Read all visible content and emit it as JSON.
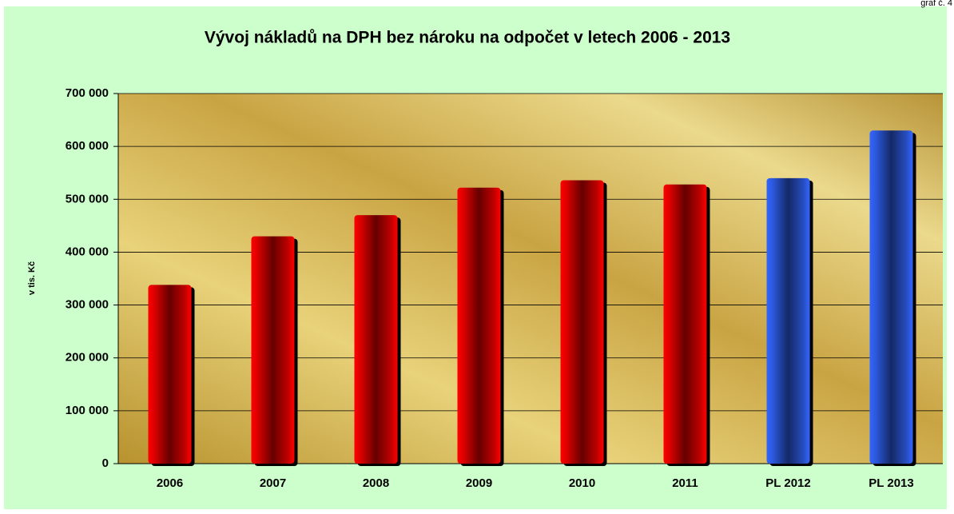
{
  "chart_data": {
    "type": "bar",
    "title": "Vývoj nákladů na DPH bez nároku na odpočet v letech 2006 - 2013",
    "corner_note": "graf č. 4",
    "y_label": "v tis. Kč",
    "categories": [
      "2006",
      "2007",
      "2008",
      "2009",
      "2010",
      "2011",
      "PL 2012",
      "PL 2013"
    ],
    "values": [
      338000,
      430000,
      470000,
      522000,
      536000,
      528000,
      540000,
      630000
    ],
    "colors": [
      "#ff0000",
      "#ff0000",
      "#ff0000",
      "#ff0000",
      "#ff0000",
      "#ff0000",
      "#3366ff",
      "#3366ff"
    ],
    "ylim": [
      0,
      700000
    ],
    "yticks": [
      0,
      {
        "value": 100000,
        "label": "100 000"
      },
      {
        "value": 200000,
        "label": "200 000"
      },
      {
        "value": 300000,
        "label": "300 000"
      },
      {
        "value": 400000,
        "label": "400 000"
      },
      {
        "value": 500000,
        "label": "500 000"
      },
      {
        "value": 600000,
        "label": "600 000"
      },
      {
        "value": 700000,
        "label": "700 000"
      }
    ],
    "grid": true
  }
}
